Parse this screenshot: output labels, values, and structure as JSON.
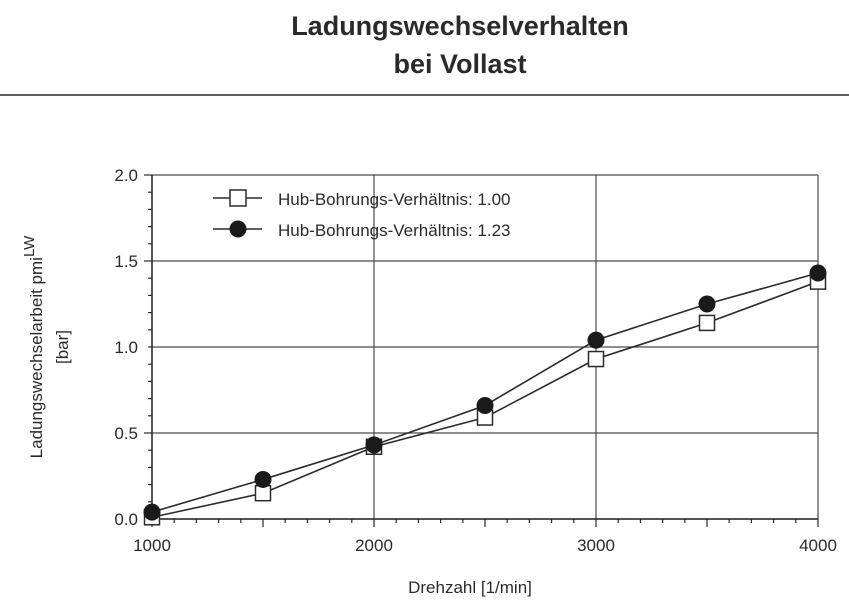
{
  "chart_data": {
    "type": "line",
    "title": "Ladungswechselverhalten",
    "subtitle": "bei Vollast",
    "xlabel": "Drehzahl  [1/min]",
    "ylabel_main": "Ladungswechselarbeit pmi",
    "ylabel_sub": "LW",
    "ylabel_unit": "[bar]",
    "xlim": [
      1000,
      4000
    ],
    "ylim": [
      0.0,
      2.0
    ],
    "x_ticks": [
      "1000",
      "2000",
      "3000",
      "4000"
    ],
    "y_ticks": [
      "0.0",
      "0.5",
      "1.0",
      "1.5",
      "2.0"
    ],
    "grid": true,
    "legend_position": "top-left",
    "x": [
      1000,
      1500,
      2000,
      2500,
      3000,
      3500,
      4000
    ],
    "series": [
      {
        "name": "Hub-Bohrungs-Verhältnis: 1.00",
        "marker": "open-square",
        "values": [
          0.01,
          0.15,
          0.42,
          0.59,
          0.93,
          1.14,
          1.38
        ]
      },
      {
        "name": "Hub-Bohrungs-Verhältnis: 1.23",
        "marker": "filled-circle",
        "values": [
          0.04,
          0.23,
          0.43,
          0.66,
          1.04,
          1.25,
          1.43
        ]
      }
    ],
    "colors": {
      "line": "#2a2a2a",
      "grid": "#4a4a4a",
      "marker_fill_open": "#ffffff",
      "marker_fill_solid": "#1a1a1a"
    }
  }
}
